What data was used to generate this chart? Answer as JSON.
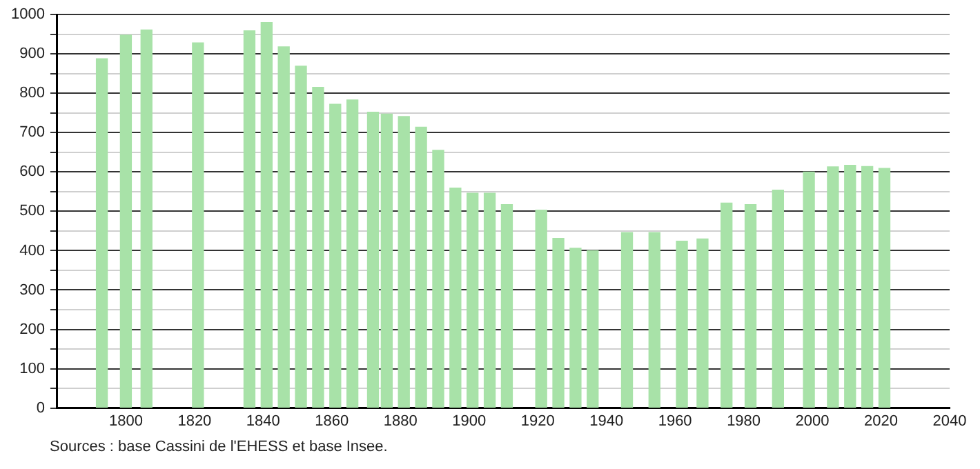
{
  "chart_data": {
    "type": "bar",
    "x": [
      1793,
      1800,
      1806,
      1821,
      1836,
      1841,
      1846,
      1851,
      1856,
      1861,
      1866,
      1872,
      1876,
      1881,
      1886,
      1891,
      1896,
      1901,
      1906,
      1911,
      1921,
      1926,
      1931,
      1936,
      1946,
      1954,
      1962,
      1968,
      1975,
      1982,
      1990,
      1999,
      2006,
      2011,
      2016,
      2021
    ],
    "values": [
      888,
      948,
      961,
      928,
      959,
      980,
      918,
      869,
      815,
      772,
      783,
      752,
      747,
      741,
      714,
      655,
      559,
      546,
      546,
      517,
      503,
      431,
      406,
      400,
      446,
      446,
      424,
      430,
      521,
      517,
      554,
      600,
      613,
      617,
      614,
      609
    ],
    "color": "#a8e2a8",
    "xlim": [
      1780,
      2040
    ],
    "xticks": [
      1800,
      1820,
      1840,
      1860,
      1880,
      1900,
      1920,
      1940,
      1960,
      1980,
      2000,
      2020,
      2040
    ],
    "ylim": [
      0,
      1000
    ],
    "yticks": [
      0,
      {
        "value": 50,
        "label": null
      },
      100,
      {
        "value": 150,
        "label": null
      },
      200,
      {
        "value": 250,
        "label": null
      },
      300,
      {
        "value": 350,
        "label": null
      },
      400,
      {
        "value": 450,
        "label": null
      },
      500,
      {
        "value": 550,
        "label": null
      },
      600,
      {
        "value": 650,
        "label": null
      },
      700,
      {
        "value": 750,
        "label": null
      },
      800,
      {
        "value": 850,
        "label": null
      },
      900,
      {
        "value": 950,
        "label": null
      },
      1000
    ],
    "grid": "y",
    "legend": false,
    "annotations": [
      "Sources : base Cassini de l'EHESS et base Insee."
    ]
  }
}
